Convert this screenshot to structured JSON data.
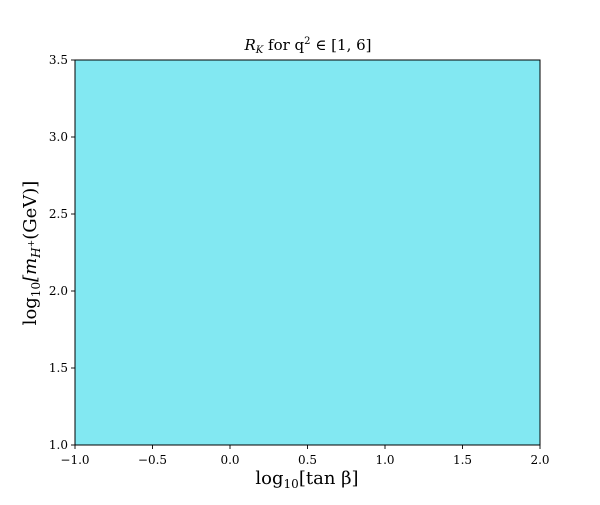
{
  "chart_data": {
    "type": "heatmap",
    "title": "R_K for q² ∈ [1, 6]",
    "title_parts": {
      "main": "R",
      "main_sub": "K",
      "middle": " for q",
      "middle_sup": "2",
      "rest": " ∈ [1, 6]"
    },
    "xlabel": "log₁₀[tan β]",
    "xlabel_parts": {
      "func": "log",
      "func_sub": "10",
      "arg": "[tan β]"
    },
    "ylabel": "log₁₀[m_H⁺(GeV)]",
    "ylabel_parts": {
      "func": "log",
      "func_sub": "10",
      "open": "[m",
      "m_sub": "H",
      "m_subsup": "+",
      "rest": "(GeV)]"
    },
    "xlim": [
      -1.0,
      2.0
    ],
    "ylim": [
      1.0,
      3.5
    ],
    "xticks": [
      -1.0,
      -0.5,
      0.0,
      0.5,
      1.0,
      1.5,
      2.0
    ],
    "xtick_labels": [
      "−1.0",
      "−0.5",
      "0.0",
      "0.5",
      "1.0",
      "1.5",
      "2.0"
    ],
    "yticks": [
      1.0,
      1.5,
      2.0,
      2.5,
      3.0,
      3.5
    ],
    "ytick_labels": [
      "1.0",
      "1.5",
      "2.0",
      "2.5",
      "3.0",
      "3.5"
    ],
    "grid": false,
    "legend": "none",
    "regions": [
      {
        "x": [
          -1.0,
          2.0
        ],
        "y": [
          1.0,
          3.5
        ],
        "color": "#82e8f2"
      }
    ]
  }
}
